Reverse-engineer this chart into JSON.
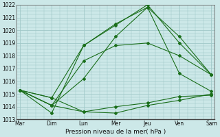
{
  "xlabel": "Pression niveau de la mer( hPa )",
  "xtick_labels": [
    "Mar",
    "Dim",
    "Lun",
    "Mer",
    "Jeu",
    "Ven",
    "Sam"
  ],
  "ylim": [
    1013,
    1022
  ],
  "yticks": [
    1013,
    1014,
    1015,
    1016,
    1017,
    1018,
    1019,
    1020,
    1021,
    1022
  ],
  "background_color": "#cce8e8",
  "grid_color": "#a0c8c8",
  "line_color": "#1a6e1a",
  "series": [
    [
      1015.3,
      1014.7,
      1013.6,
      1013.5,
      1014.1,
      1014.5,
      1015.0
    ],
    [
      1015.3,
      1014.1,
      1013.6,
      1014.0,
      1014.3,
      1014.8,
      1014.9
    ],
    [
      1015.3,
      1014.1,
      1016.2,
      1019.5,
      1021.8,
      1016.6,
      1015.2
    ],
    [
      1015.3,
      1014.7,
      1018.8,
      1020.5,
      1021.8,
      1019.5,
      1016.5
    ],
    [
      1015.3,
      1014.1,
      1017.6,
      1018.8,
      1019.0,
      1018.0,
      1016.5
    ],
    [
      1015.3,
      1013.5,
      1018.8,
      1020.4,
      1022.0,
      1019.0,
      1016.5
    ]
  ],
  "x_positions": [
    0,
    1,
    2,
    3,
    4,
    5,
    6
  ],
  "figsize": [
    3.2,
    2.0
  ],
  "dpi": 100
}
